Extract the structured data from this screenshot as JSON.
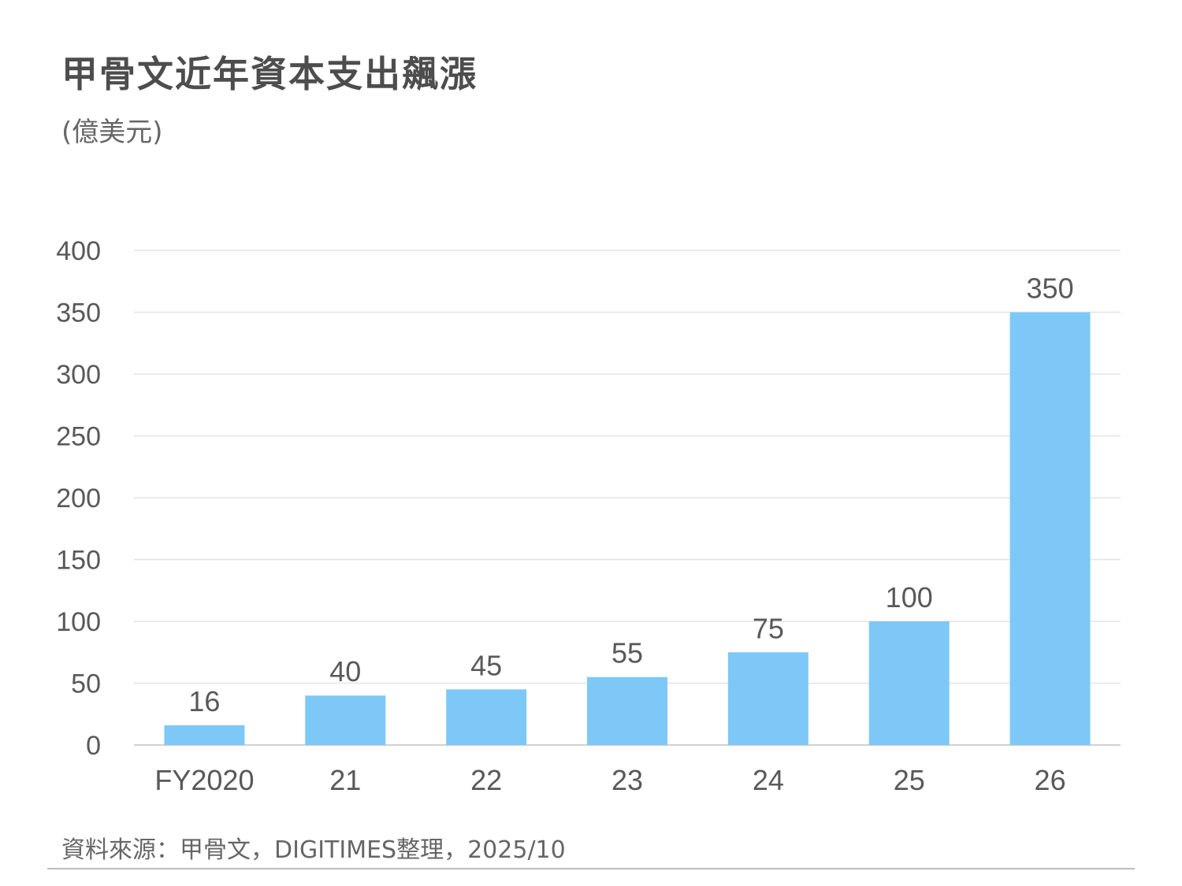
{
  "title": "甲骨文近年資本支出飆漲",
  "subtitle": "(億美元)",
  "source": "資料來源：甲骨文，DIGITIMES整理，2025/10",
  "colors": {
    "bar": "#7ec8f8",
    "grid": "#e3e3e3",
    "axis": "#d0d0d0",
    "text": "#595959"
  },
  "chart_data": {
    "type": "bar",
    "title": "甲骨文近年資本支出飆漲",
    "ylabel": "(億美元)",
    "xlabel": "",
    "categories": [
      "FY2020",
      "21",
      "22",
      "23",
      "24",
      "25",
      "26"
    ],
    "values": [
      16,
      40,
      45,
      55,
      75,
      100,
      350
    ],
    "ylim": [
      0,
      400
    ],
    "yticks": [
      0,
      50,
      100,
      150,
      200,
      250,
      300,
      350,
      400
    ],
    "grid": true,
    "data_labels": true
  }
}
